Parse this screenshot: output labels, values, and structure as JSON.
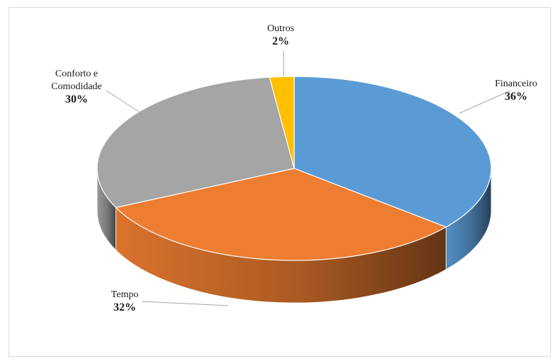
{
  "chart_data": {
    "type": "pie",
    "three_d": true,
    "slices": [
      {
        "name": "Financeiro",
        "label_lines": [
          "Financeiro"
        ],
        "value": 36,
        "value_label": "36%",
        "color": "#5B9BD5"
      },
      {
        "name": "Tempo",
        "label_lines": [
          "Tempo"
        ],
        "value": 32,
        "value_label": "32%",
        "color": "#ED7D31"
      },
      {
        "name": "Conforto e Comodidade",
        "label_lines": [
          "Conforto e",
          "Comodidade"
        ],
        "value": 30,
        "value_label": "30%",
        "color": "#A5A5A5"
      },
      {
        "name": "Outros",
        "label_lines": [
          "Outros"
        ],
        "value": 2,
        "value_label": "2%",
        "color": "#FFC000"
      }
    ],
    "start": "12 o'clock",
    "direction": "clockwise",
    "legend": "none",
    "data_labels": "category name and percentage with leader lines"
  }
}
